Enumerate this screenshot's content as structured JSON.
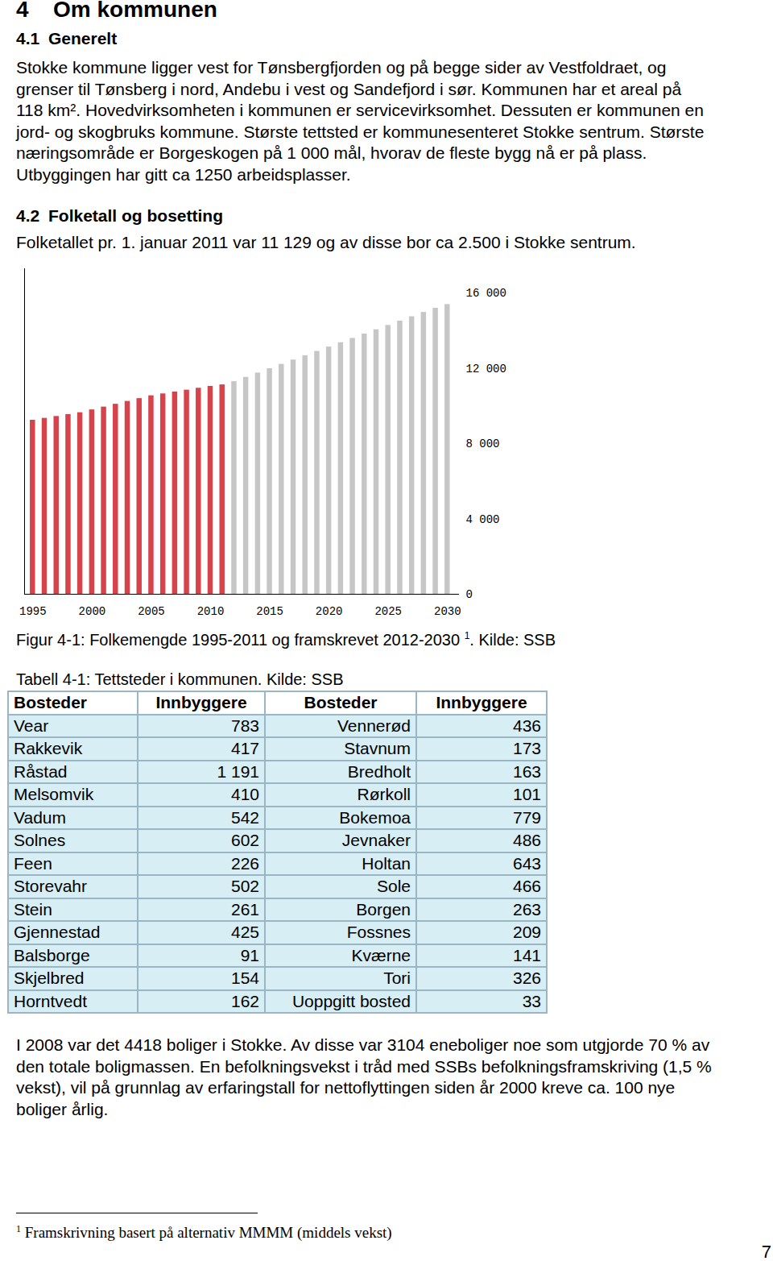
{
  "heading": {
    "number": "4",
    "title": "Om kommunen"
  },
  "sections": [
    {
      "number": "4.1",
      "title": "Generelt",
      "lines": [
        "Stokke kommune ligger vest for Tønsbergfjorden og på begge sider av Vestfoldraet, og",
        "grenser til Tønsberg i nord, Andebu i vest og Sandefjord i sør. Kommunen har et areal på",
        "118 km². Hovedvirksomheten i kommunen er servicevirksomhet. Dessuten er kommunen en",
        "jord- og skogbruks kommune. Største tettsted er kommunesenteret Stokke sentrum. Største",
        "næringsområde er Borgeskogen på 1 000 mål, hvorav de fleste bygg nå er på plass.",
        "Utbyggingen har gitt ca 1250 arbeidsplasser."
      ]
    },
    {
      "number": "4.2",
      "title": "Folketall og bosetting",
      "lines": [
        "Folketallet pr. 1. januar  2011 var 11 129 og av disse bor ca 2.500 i Stokke sentrum."
      ]
    }
  ],
  "chart_data": {
    "type": "bar",
    "x": [
      1995,
      1996,
      1997,
      1998,
      1999,
      2000,
      2001,
      2002,
      2003,
      2004,
      2005,
      2006,
      2007,
      2008,
      2009,
      2010,
      2011,
      2012,
      2013,
      2014,
      2015,
      2016,
      2017,
      2018,
      2019,
      2020,
      2021,
      2022,
      2023,
      2024,
      2025,
      2026,
      2027,
      2028,
      2029,
      2030
    ],
    "values": [
      9250,
      9350,
      9450,
      9550,
      9650,
      9800,
      9950,
      10100,
      10250,
      10400,
      10550,
      10650,
      10750,
      10850,
      10950,
      11050,
      11129,
      11300,
      11530,
      11760,
      11990,
      12220,
      12450,
      12680,
      12910,
      13140,
      13370,
      13600,
      13830,
      14060,
      14290,
      14520,
      14750,
      14980,
      15200,
      15400
    ],
    "colors": [
      "#d6434a",
      "#d6434a",
      "#d6434a",
      "#d6434a",
      "#d6434a",
      "#d6434a",
      "#d6434a",
      "#d6434a",
      "#d6434a",
      "#d6434a",
      "#d6434a",
      "#d6434a",
      "#d6434a",
      "#d6434a",
      "#d6434a",
      "#d6434a",
      "#d6434a",
      "#c6c6c6",
      "#c6c6c6",
      "#c6c6c6",
      "#c6c6c6",
      "#c6c6c6",
      "#c6c6c6",
      "#c6c6c6",
      "#c6c6c6",
      "#c6c6c6",
      "#c6c6c6",
      "#c6c6c6",
      "#c6c6c6",
      "#c6c6c6",
      "#c6c6c6",
      "#c6c6c6",
      "#c6c6c6",
      "#c6c6c6",
      "#c6c6c6",
      "#c6c6c6"
    ],
    "xlim": [
      1994.3,
      2031
    ],
    "xticks": [
      1995,
      2000,
      2005,
      2010,
      2015,
      2020,
      2025,
      2030
    ],
    "ylim": [
      0,
      17300
    ],
    "yticks": [
      0,
      {
        "value": 4000,
        "label": "4 000"
      },
      {
        "value": 8000,
        "label": "8 000"
      },
      {
        "value": 12000,
        "label": "12 000"
      },
      {
        "value": 16000,
        "label": "16 000"
      }
    ],
    "grid": false
  },
  "figure_caption": {
    "text": "Figur 4-1: Folkemengde 1995-2011 og framskrevet 2012-2030",
    "note_ref": "1",
    "text_after": ". Kilde: SSB"
  },
  "table": {
    "title": "Tabell 4-1: Tettsteder i kommunen. Kilde: SSB",
    "header": [
      "Bosteder",
      "Innbyggere",
      "Bosteder",
      "Innbyggere"
    ],
    "rows": [
      [
        "Vear",
        "783",
        "Vennerød",
        "436"
      ],
      [
        "Rakkevik",
        "417",
        "Stavnum",
        "173"
      ],
      [
        "Råstad",
        "1 191",
        "Bredholt",
        "163"
      ],
      [
        "Melsomvik",
        "410",
        "Rørkoll",
        "101"
      ],
      [
        "Vadum",
        "542",
        "Bokemoa",
        "779"
      ],
      [
        "Solnes",
        "602",
        "Jevnaker",
        "486"
      ],
      [
        "Feen",
        "226",
        "Holtan",
        "643"
      ],
      [
        "Storevahr",
        "502",
        "Sole",
        "466"
      ],
      [
        "Stein",
        "261",
        "Borgen",
        "263"
      ],
      [
        "Gjennestad",
        "425",
        "Fossnes",
        "209"
      ],
      [
        "Balsborge",
        "91",
        "Kværne",
        "141"
      ],
      [
        "Skjelbred",
        "154",
        "Tori",
        "326"
      ],
      [
        "Horntvedt",
        "162",
        "Uoppgitt bosted",
        "33"
      ]
    ]
  },
  "closing_lines": [
    "I 2008 var det 4418 boliger i Stokke. Av disse var 3104 eneboliger noe som utgjorde 70 % av",
    "den totale boligmassen. En befolkningsvekst i tråd med SSBs befolkningsframskriving (1,5 %",
    "vekst), vil på grunnlag av erfaringstall for nettoflyttingen siden år 2000 kreve ca. 100 nye",
    "boliger årlig."
  ],
  "footnote": {
    "ref": "1",
    "text": "Framskrivning basert på alternativ MMMM (middels vekst)"
  },
  "page_number": "7"
}
